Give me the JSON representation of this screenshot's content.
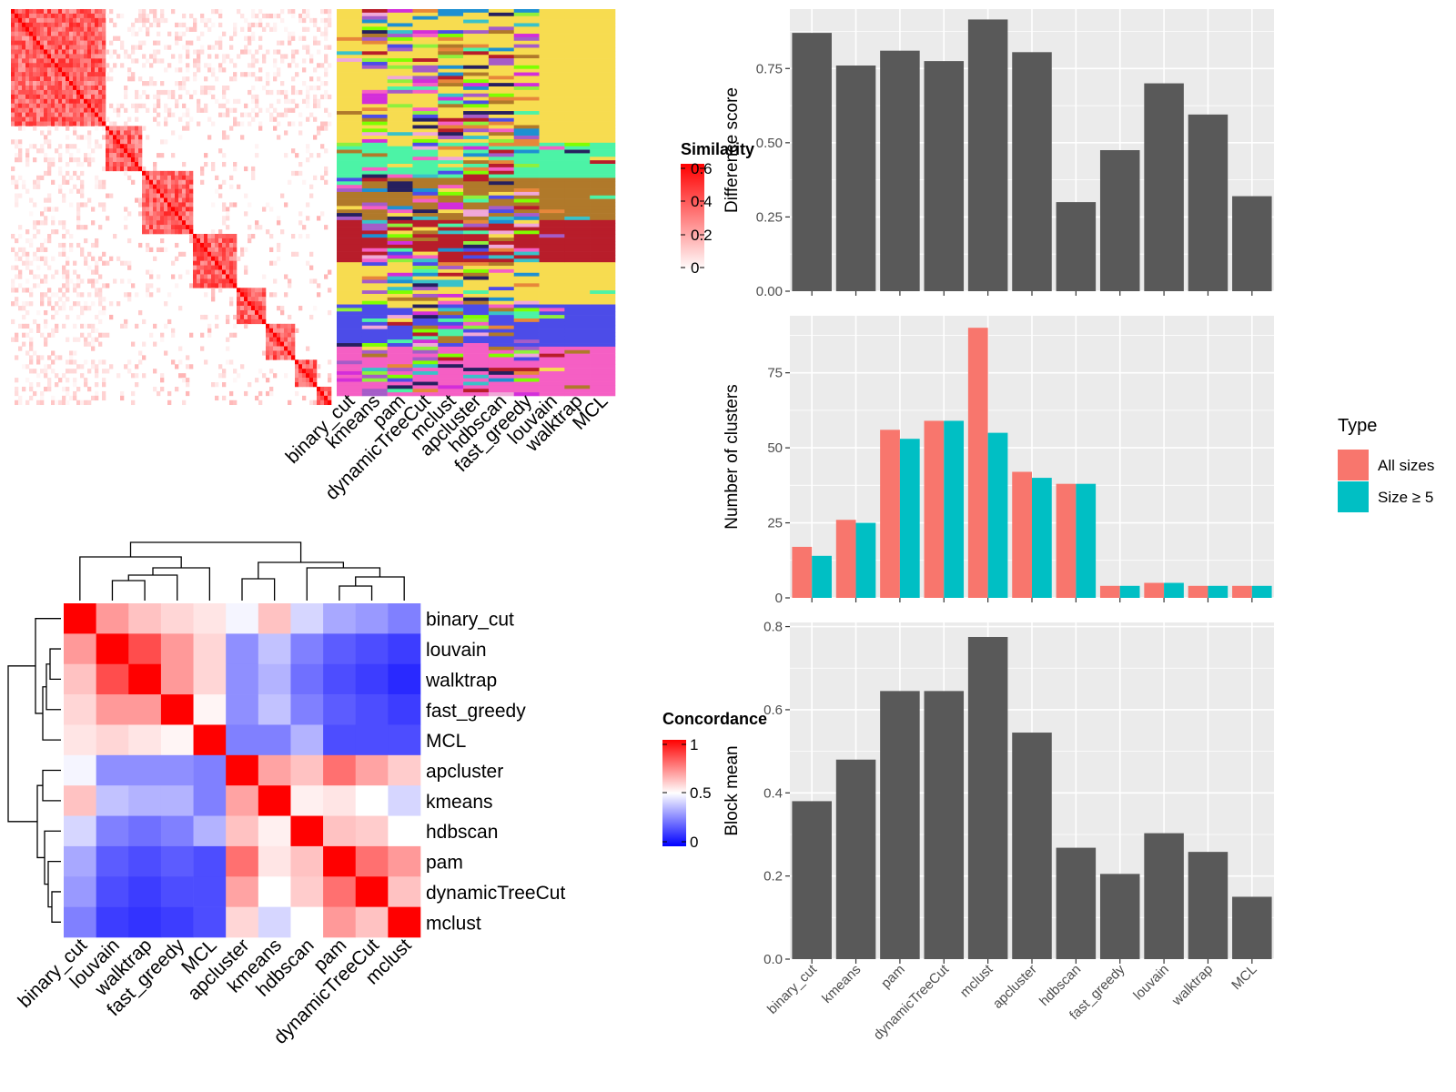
{
  "chart_data": [
    {
      "panel": "similarity-heatmap-with-cluster-annotations",
      "type": "heatmap",
      "legend": {
        "title": "Similarity",
        "breaks": [
          "0.6",
          "0.4",
          "0.2",
          "0"
        ],
        "colors": [
          "#ffffff",
          "#ff0000"
        ]
      },
      "annotation_columns": [
        "binary_cut",
        "kmeans",
        "pam",
        "dynamicTreeCut",
        "mclust",
        "apcluster",
        "hdbscan",
        "fast_greedy",
        "louvain",
        "walktrap",
        "MCL"
      ]
    },
    {
      "panel": "concordance-heatmap",
      "type": "heatmap",
      "legend": {
        "title": "Concordance",
        "breaks": [
          "1",
          "0.5",
          "0"
        ],
        "colors": [
          "#0000ff",
          "#ffffff",
          "#ff0000"
        ]
      },
      "rows": [
        "binary_cut",
        "louvain",
        "walktrap",
        "fast_greedy",
        "MCL",
        "apcluster",
        "kmeans",
        "hdbscan",
        "pam",
        "dynamicTreeCut",
        "mclust"
      ],
      "columns": [
        "binary_cut",
        "louvain",
        "walktrap",
        "fast_greedy",
        "MCL",
        "apcluster",
        "kmeans",
        "hdbscan",
        "pam",
        "dynamicTreeCut",
        "mclust"
      ],
      "values": [
        [
          1.0,
          0.7,
          0.62,
          0.58,
          0.55,
          0.48,
          0.62,
          0.42,
          0.33,
          0.3,
          0.25
        ],
        [
          0.7,
          1.0,
          0.85,
          0.7,
          0.58,
          0.28,
          0.38,
          0.25,
          0.18,
          0.15,
          0.12
        ],
        [
          0.62,
          0.85,
          1.0,
          0.7,
          0.58,
          0.28,
          0.35,
          0.22,
          0.15,
          0.12,
          0.08
        ],
        [
          0.58,
          0.7,
          0.7,
          1.0,
          0.52,
          0.28,
          0.38,
          0.25,
          0.18,
          0.15,
          0.12
        ],
        [
          0.55,
          0.58,
          0.55,
          0.52,
          1.0,
          0.25,
          0.25,
          0.35,
          0.15,
          0.15,
          0.15
        ],
        [
          0.48,
          0.28,
          0.28,
          0.28,
          0.25,
          1.0,
          0.68,
          0.62,
          0.78,
          0.68,
          0.6
        ],
        [
          0.62,
          0.38,
          0.35,
          0.35,
          0.25,
          0.68,
          1.0,
          0.53,
          0.55,
          0.5,
          0.42
        ],
        [
          0.42,
          0.25,
          0.22,
          0.25,
          0.35,
          0.62,
          0.53,
          1.0,
          0.62,
          0.6,
          0.5
        ],
        [
          0.33,
          0.18,
          0.15,
          0.18,
          0.15,
          0.78,
          0.55,
          0.62,
          1.0,
          0.78,
          0.7
        ],
        [
          0.3,
          0.15,
          0.12,
          0.15,
          0.15,
          0.68,
          0.5,
          0.6,
          0.78,
          1.0,
          0.62
        ],
        [
          0.25,
          0.12,
          0.1,
          0.12,
          0.15,
          0.58,
          0.42,
          0.5,
          0.7,
          0.62,
          1.0
        ]
      ]
    },
    {
      "panel": "difference-score",
      "type": "bar",
      "categories": [
        "binary_cut",
        "kmeans",
        "pam",
        "dynamicTreeCut",
        "mclust",
        "apcluster",
        "hdbscan",
        "fast_greedy",
        "louvain",
        "walktrap",
        "MCL"
      ],
      "values": [
        0.87,
        0.76,
        0.81,
        0.775,
        0.915,
        0.805,
        0.3,
        0.475,
        0.7,
        0.595,
        0.32
      ],
      "ylabel": "Difference score",
      "ylim": [
        0,
        0.95
      ],
      "yticks": [
        "0.00",
        "0.25",
        "0.50",
        "0.75"
      ],
      "bar_color": "#595959"
    },
    {
      "panel": "number-of-clusters",
      "type": "bar",
      "categories": [
        "binary_cut",
        "kmeans",
        "pam",
        "dynamicTreeCut",
        "mclust",
        "apcluster",
        "hdbscan",
        "fast_greedy",
        "louvain",
        "walktrap",
        "MCL"
      ],
      "series": [
        {
          "name": "All sizes",
          "color": "#F8766D",
          "values": [
            17,
            26,
            56,
            59,
            90,
            42,
            38,
            4,
            5,
            4,
            4
          ]
        },
        {
          "name": "Size ≥ 5",
          "color": "#00BFC4",
          "values": [
            14,
            25,
            53,
            59,
            55,
            40,
            38,
            4,
            5,
            4,
            4
          ]
        }
      ],
      "ylabel": "Number of clusters",
      "ylim": [
        0,
        94
      ],
      "yticks": [
        "0",
        "25",
        "50",
        "75"
      ],
      "legend": {
        "title": "Type",
        "placement": "right"
      }
    },
    {
      "panel": "block-mean",
      "type": "bar",
      "categories": [
        "binary_cut",
        "kmeans",
        "pam",
        "dynamicTreeCut",
        "mclust",
        "apcluster",
        "hdbscan",
        "fast_greedy",
        "louvain",
        "walktrap",
        "MCL"
      ],
      "values": [
        0.38,
        0.48,
        0.645,
        0.645,
        0.775,
        0.545,
        0.268,
        0.205,
        0.303,
        0.258,
        0.15
      ],
      "ylabel": "Block mean",
      "ylim": [
        0,
        0.81
      ],
      "yticks": [
        "0.0",
        "0.2",
        "0.4",
        "0.6",
        "0.8"
      ],
      "bar_color": "#595959"
    }
  ]
}
